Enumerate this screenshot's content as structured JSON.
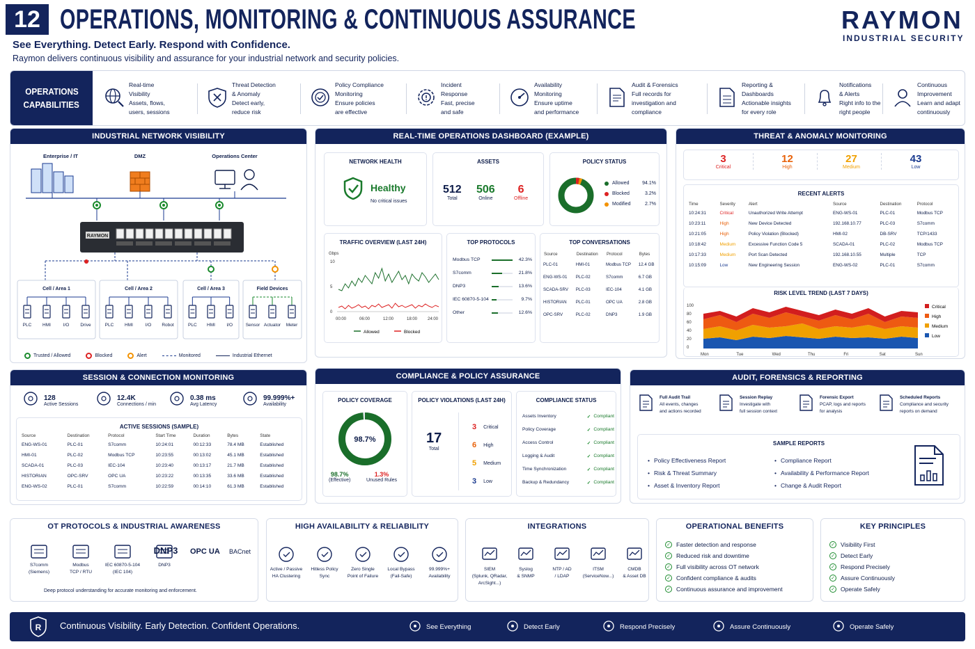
{
  "header": {
    "number": "12",
    "title": "OPERATIONS, MONITORING & CONTINUOUS ASSURANCE",
    "tagline": "See Everything. Detect Early. Respond with Confidence.",
    "description": "Raymon delivers continuous visibility and assurance for your industrial network and security policies.",
    "brand": "RAYMON",
    "brand_sub": "INDUSTRIAL SECURITY"
  },
  "capabilities": {
    "label_line1": "OPERATIONS",
    "label_line2": "CAPABILITIES",
    "items": [
      {
        "l1": "Real-time",
        "l2": "Visibility",
        "l3": "Assets, flows,",
        "l4": "users, sessions",
        "icon": "globe-search-icon"
      },
      {
        "l1": "Threat Detection",
        "l2": "& Anomaly",
        "l3": "Detect early,",
        "l4": "reduce risk",
        "icon": "shield-crosshair-icon"
      },
      {
        "l1": "Policy Compliance",
        "l2": "Monitoring",
        "l3": "Ensure policies",
        "l4": "are effective",
        "icon": "policy-badge-icon"
      },
      {
        "l1": "Incident",
        "l2": "Response",
        "l3": "Fast, precise",
        "l4": "and safe",
        "icon": "gear-alert-icon"
      },
      {
        "l1": "Availability",
        "l2": "Monitoring",
        "l3": "Ensure uptime",
        "l4": "and performance",
        "icon": "gauge-icon"
      },
      {
        "l1": "Audit & Forensics",
        "l2": "Full records for",
        "l3": "investigation and",
        "l4": "compliance",
        "icon": "document-search-icon"
      },
      {
        "l1": "Reporting &",
        "l2": "Dashboards",
        "l3": "Actionable insights",
        "l4": "for every role",
        "icon": "report-icon"
      },
      {
        "l1": "Notifications",
        "l2": "& Alerts",
        "l3": "Right info to the",
        "l4": "right people",
        "icon": "bell-icon"
      },
      {
        "l1": "Continuous",
        "l2": "Improvement",
        "l3": "Learn and adapt",
        "l4": "continuously",
        "icon": "person-cycle-icon"
      }
    ]
  },
  "network": {
    "title": "INDUSTRIAL NETWORK VISIBILITY",
    "enterprise": "Enterprise / IT",
    "dmz": "DMZ",
    "opscenter": "Operations Center",
    "switch_brand": "RAYMON",
    "cells": [
      {
        "name": "Cell / Area 1",
        "devices": [
          "PLC",
          "HMI",
          "I/O",
          "Drive"
        ]
      },
      {
        "name": "Cell / Area 2",
        "devices": [
          "PLC",
          "HMI",
          "I/O",
          "Robot"
        ]
      },
      {
        "name": "Cell / Area 3",
        "devices": [
          "PLC",
          "HMI",
          "I/O"
        ]
      },
      {
        "name": "Field Devices",
        "devices": [
          "Sensor",
          "Actuator",
          "Meter"
        ]
      }
    ],
    "legend": [
      "Trusted / Allowed",
      "Blocked",
      "Alert",
      "Monitored",
      "Industrial Ethernet"
    ]
  },
  "dashboard": {
    "title": "REAL-TIME OPERATIONS DASHBOARD (EXAMPLE)",
    "health": {
      "title": "NETWORK HEALTH",
      "status": "Healthy",
      "detail": "No critical issues"
    },
    "assets": {
      "title": "ASSETS",
      "total": "512",
      "total_label": "Total",
      "online": "506",
      "online_label": "Online",
      "offline": "6",
      "offline_label": "Offline"
    },
    "policy": {
      "title": "POLICY STATUS",
      "rows": [
        {
          "label": "Allowed",
          "pct": "94.1%",
          "color": "#1a6e2a"
        },
        {
          "label": "Blocked",
          "pct": "3.2%",
          "color": "#d22"
        },
        {
          "label": "Modified",
          "pct": "2.7%",
          "color": "#f39200"
        }
      ]
    },
    "traffic": {
      "title": "TRAFFIC OVERVIEW (LAST 24H)",
      "unit": "Gbps",
      "yticks": [
        "10",
        "5",
        "0"
      ],
      "xticks": [
        "00:00",
        "06:00",
        "12:00",
        "18:00",
        "24:00"
      ],
      "legend_allowed": "Allowed",
      "legend_blocked": "Blocked"
    },
    "protocols": {
      "title": "TOP PROTOCOLS",
      "rows": [
        {
          "name": "Modbus TCP",
          "pct": "42.3%",
          "v": 42.3
        },
        {
          "name": "S7comm",
          "pct": "21.8%",
          "v": 21.8
        },
        {
          "name": "DNP3",
          "pct": "13.6%",
          "v": 13.6
        },
        {
          "name": "IEC 60870-5-104",
          "pct": "9.7%",
          "v": 9.7
        },
        {
          "name": "Other",
          "pct": "12.6%",
          "v": 12.6
        }
      ]
    },
    "conversations": {
      "title": "TOP CONVERSATIONS",
      "headers": [
        "Source",
        "Destination",
        "Protocol",
        "Bytes"
      ],
      "rows": [
        [
          "PLC-01",
          "HMI-01",
          "Modbus TCP",
          "12.4 GB"
        ],
        [
          "ENG-WS-01",
          "PLC-02",
          "S7comm",
          "6.7 GB"
        ],
        [
          "SCADA-SRV",
          "PLC-03",
          "IEC-104",
          "4.1 GB"
        ],
        [
          "HISTORIAN",
          "PLC-01",
          "OPC UA",
          "2.8 GB"
        ],
        [
          "OPC-SRV",
          "PLC-02",
          "DNP3",
          "1.9 GB"
        ]
      ]
    }
  },
  "threat": {
    "title": "THREAT & ANOMALY MONITORING",
    "counts": [
      {
        "n": "3",
        "l": "Critical",
        "c": "#d22"
      },
      {
        "n": "12",
        "l": "High",
        "c": "#e8620a"
      },
      {
        "n": "27",
        "l": "Medium",
        "c": "#f0a000"
      },
      {
        "n": "43",
        "l": "Low",
        "c": "#1a3a8f"
      }
    ],
    "alerts_title": "RECENT ALERTS",
    "headers": [
      "Time",
      "Severity",
      "Alert",
      "Source",
      "Destination",
      "Protocol"
    ],
    "alerts": [
      [
        "10:24:31",
        "Critical",
        "Unauthorized Write Attempt",
        "ENG-WS-01",
        "PLC-01",
        "Modbus TCP"
      ],
      [
        "10:23:11",
        "High",
        "New Device Detected",
        "192.168.10.77",
        "PLC-03",
        "S7comm"
      ],
      [
        "10:21:05",
        "High",
        "Policy Violation (Blocked)",
        "HMI-02",
        "DB-SRV",
        "TCP/1433"
      ],
      [
        "10:18:42",
        "Medium",
        "Excessive Function Code 5",
        "SCADA-01",
        "PLC-02",
        "Modbus TCP"
      ],
      [
        "10:17:33",
        "Medium",
        "Port Scan Detected",
        "192.168.10.55",
        "Multiple",
        "TCP"
      ],
      [
        "10:15:09",
        "Low",
        "New Engineering Session",
        "ENG-WS-02",
        "PLC-01",
        "S7comm"
      ]
    ],
    "trend_title": "RISK LEVEL TREND (LAST 7 DAYS)",
    "trend_yticks": [
      "100",
      "80",
      "60",
      "40",
      "20",
      "0"
    ],
    "trend_days": [
      "Mon",
      "Tue",
      "Wed",
      "Thu",
      "Fri",
      "Sat",
      "Sun"
    ],
    "trend_legend": [
      "Critical",
      "High",
      "Medium",
      "Low"
    ]
  },
  "session": {
    "title": "SESSION & CONNECTION MONITORING",
    "stats": [
      {
        "v": "128",
        "l": "Active Sessions",
        "icon": "users-icon"
      },
      {
        "v": "12.4K",
        "l": "Connections / min",
        "icon": "pulse-icon"
      },
      {
        "v": "0.38 ms",
        "l": "Avg Latency",
        "icon": "clock-icon"
      },
      {
        "v": "99.999%+",
        "l": "Availability",
        "icon": "target-icon"
      }
    ],
    "table_title": "ACTIVE SESSIONS (SAMPLE)",
    "headers": [
      "Source",
      "Destination",
      "Protocol",
      "Start Time",
      "Duration",
      "Bytes",
      "State"
    ],
    "rows": [
      [
        "ENG-WS-01",
        "PLC-01",
        "S7comm",
        "10:24:01",
        "00:12:33",
        "78.4 MB",
        "Established"
      ],
      [
        "HMI-01",
        "PLC-02",
        "Modbus TCP",
        "10:23:55",
        "00:13:02",
        "45.1 MB",
        "Established"
      ],
      [
        "SCADA-01",
        "PLC-03",
        "IEC-104",
        "10:23:40",
        "00:13:17",
        "21.7 MB",
        "Established"
      ],
      [
        "HISTORIAN",
        "OPC-SRV",
        "OPC UA",
        "10:23:22",
        "00:13:35",
        "33.6 MB",
        "Established"
      ],
      [
        "ENG-WS-02",
        "PLC-01",
        "S7comm",
        "10:22:59",
        "00:14:10",
        "61.3 MB",
        "Established"
      ]
    ]
  },
  "compliance": {
    "title": "COMPLIANCE & POLICY ASSURANCE",
    "coverage_title": "POLICY COVERAGE",
    "coverage_pct": "98.7%",
    "coverage_value": 98.7,
    "effective": "98.7%",
    "effective_label": "(Effective)",
    "unused": "1.3%",
    "unused_label": "Unused Rules",
    "violations_title": "POLICY VIOLATIONS (LAST 24H)",
    "violations_total": "17",
    "violations_total_label": "Total",
    "violations": [
      {
        "n": "3",
        "l": "Critical",
        "c": "#d22"
      },
      {
        "n": "6",
        "l": "High",
        "c": "#e8620a"
      },
      {
        "n": "5",
        "l": "Medium",
        "c": "#f0a000"
      },
      {
        "n": "3",
        "l": "Low",
        "c": "#1a3a8f"
      }
    ],
    "status_title": "COMPLIANCE STATUS",
    "status": [
      [
        "Assets Inventory",
        "Compliant"
      ],
      [
        "Policy Coverage",
        "Compliant"
      ],
      [
        "Access Control",
        "Compliant"
      ],
      [
        "Logging & Audit",
        "Compliant"
      ],
      [
        "Time Synchronization",
        "Compliant"
      ],
      [
        "Backup & Redundancy",
        "Compliant"
      ]
    ]
  },
  "audit": {
    "title": "AUDIT, FORENSICS & REPORTING",
    "items": [
      {
        "t": "Full Audit Trail",
        "d1": "All events, changes",
        "d2": "and actions recorded",
        "icon": "audit-list-icon"
      },
      {
        "t": "Session Replay",
        "d1": "Investigate with",
        "d2": "full session context",
        "icon": "shield-replay-icon"
      },
      {
        "t": "Forensic Export",
        "d1": "PCAP, logs and reports",
        "d2": "for analysis",
        "icon": "export-doc-icon"
      },
      {
        "t": "Scheduled Reports",
        "d1": "Compliance and security",
        "d2": "reports on demand",
        "icon": "scheduled-report-icon"
      }
    ],
    "reports_title": "SAMPLE REPORTS",
    "reports_left": [
      "Policy Effectiveness Report",
      "Risk & Threat Summary",
      "Asset & Inventory Report"
    ],
    "reports_right": [
      "Compliance Report",
      "Availability & Performance Report",
      "Change & Audit Report"
    ]
  },
  "ot": {
    "title": "OT PROTOCOLS & INDUSTRIAL AWARENESS",
    "protocols": [
      {
        "l1": "S7comm",
        "l2": "(Siemens)"
      },
      {
        "l1": "Modbus",
        "l2": "TCP / RTU"
      },
      {
        "l1": "IEC 60870-5-104",
        "l2": "(IEC 104)"
      },
      {
        "l1": "DNP3",
        "l2": ""
      }
    ],
    "logo_dnp3": "DNP3",
    "logo_opcua": "OPC UA",
    "logo_bacnet": "BACnet",
    "note": "Deep protocol understanding for accurate monitoring and enforcement."
  },
  "ha": {
    "title": "HIGH AVAILABILITY & RELIABILITY",
    "items": [
      {
        "l1": "Active / Passive",
        "l2": "HA Clustering"
      },
      {
        "l1": "Hitless Policy",
        "l2": "Sync"
      },
      {
        "l1": "Zero Single",
        "l2": "Point of Failure"
      },
      {
        "l1": "Local Bypass",
        "l2": "(Fail-Safe)"
      },
      {
        "l1": "99.999%+",
        "l2": "Availability"
      }
    ]
  },
  "integrations": {
    "title": "INTEGRATIONS",
    "items": [
      {
        "l1": "SIEM",
        "l2": "(Splunk, QRadar,",
        "l3": "ArcSight...)"
      },
      {
        "l1": "Syslog",
        "l2": "& SNMP",
        "l3": ""
      },
      {
        "l1": "NTP / AD",
        "l2": "/ LDAP",
        "l3": ""
      },
      {
        "l1": "ITSM",
        "l2": "(ServiceNow...)",
        "l3": ""
      },
      {
        "l1": "CMDB",
        "l2": "& Asset DB",
        "l3": ""
      }
    ]
  },
  "benefits": {
    "title": "OPERATIONAL BENEFITS",
    "items": [
      "Faster detection and response",
      "Reduced risk and downtime",
      "Full visibility across OT network",
      "Confident compliance & audits",
      "Continuous assurance and improvement"
    ]
  },
  "principles": {
    "title": "KEY PRINCIPLES",
    "items": [
      "Visibility First",
      "Detect Early",
      "Respond Precisely",
      "Assure Continuously",
      "Operate Safely"
    ]
  },
  "footer": {
    "slogan": "Continuous Visibility. Early Detection. Confident Operations.",
    "items": [
      "See Everything",
      "Detect Early",
      "Respond Precisely",
      "Assure Continuously",
      "Operate Safely"
    ]
  }
}
